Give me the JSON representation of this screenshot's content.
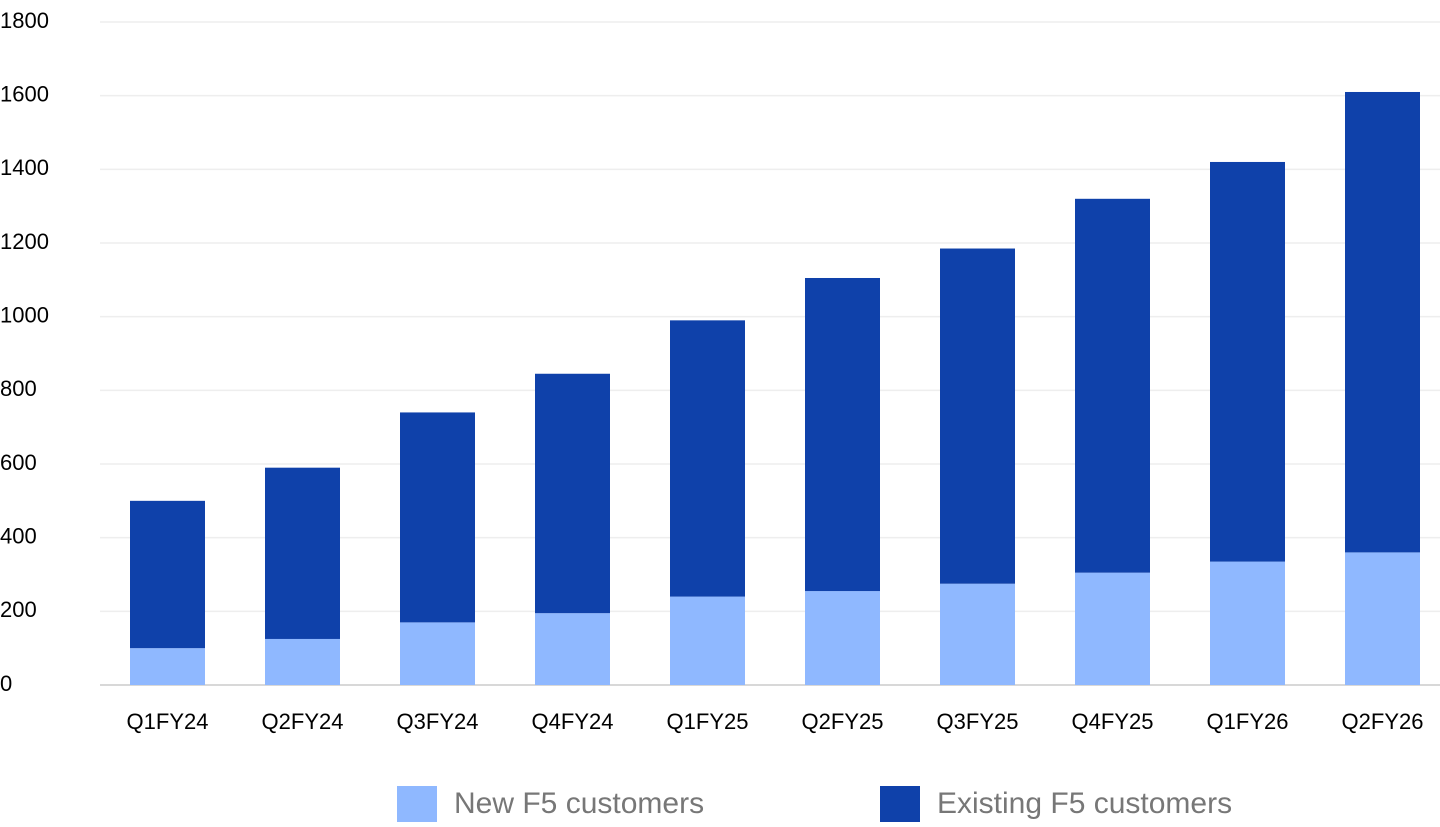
{
  "chart_data": {
    "type": "stacked_bar",
    "categories": [
      "Q1FY24",
      "Q2FY24",
      "Q3FY24",
      "Q4FY24",
      "Q1FY25",
      "Q2FY25",
      "Q3FY25",
      "Q4FY25",
      "Q1FY26",
      "Q2FY26"
    ],
    "series": [
      {
        "name": "New F5 customers",
        "color": "#8fb8ff",
        "values": [
          100,
          125,
          170,
          195,
          240,
          255,
          275,
          305,
          335,
          360
        ]
      },
      {
        "name": "Existing F5 customers",
        "color": "#0f41aa",
        "values": [
          400,
          465,
          570,
          650,
          750,
          850,
          910,
          1015,
          1085,
          1250
        ]
      }
    ],
    "ylim": [
      0,
      1800
    ],
    "yticks": [
      0,
      200,
      400,
      600,
      800,
      1000,
      1200,
      1400,
      1600,
      1800
    ],
    "grid": true,
    "legend": "bottom"
  }
}
